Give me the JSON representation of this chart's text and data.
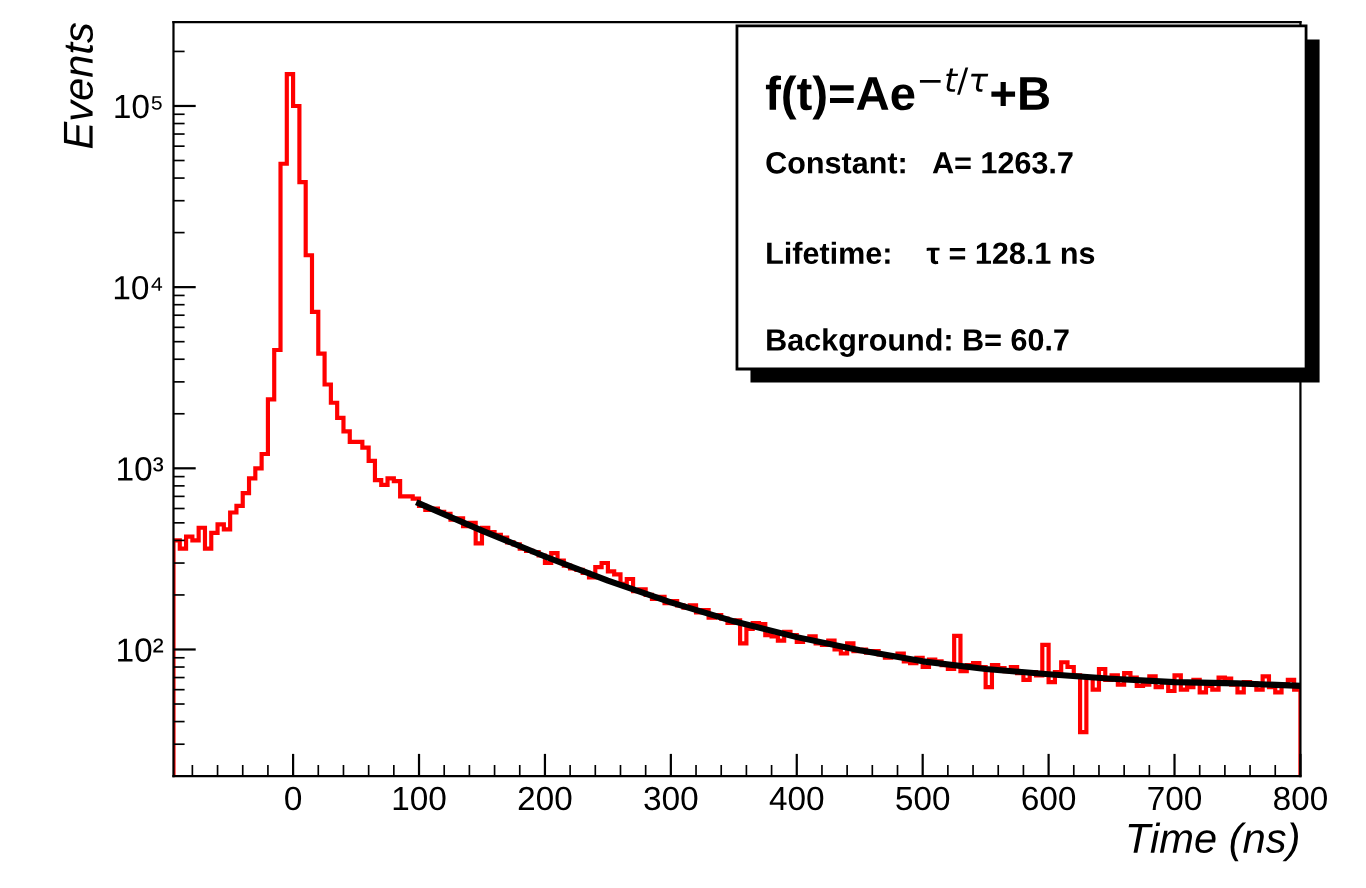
{
  "chart_data": {
    "type": "histogram",
    "xlabel": "Time (ns)",
    "ylabel": "Events",
    "bins": [
      -95,
      -90,
      -85,
      -80,
      -75,
      -70,
      -65,
      -60,
      -55,
      -50,
      -45,
      -40,
      -35,
      -30,
      -25,
      -20,
      -15,
      -10,
      -5,
      0,
      5,
      10,
      15,
      20,
      25,
      30,
      35,
      40,
      45,
      50,
      55,
      60,
      65,
      70,
      75,
      80,
      85,
      90,
      95,
      100,
      105,
      110,
      115,
      120,
      125,
      130,
      135,
      140,
      145,
      150,
      155,
      160,
      165,
      170,
      175,
      180,
      185,
      190,
      195,
      200,
      205,
      210,
      215,
      220,
      225,
      230,
      235,
      240,
      245,
      250,
      255,
      260,
      265,
      270,
      275,
      280,
      285,
      290,
      295,
      300,
      305,
      310,
      315,
      320,
      325,
      330,
      335,
      340,
      345,
      350,
      355,
      360,
      365,
      370,
      375,
      380,
      385,
      390,
      395,
      400,
      405,
      410,
      415,
      420,
      425,
      430,
      435,
      440,
      445,
      450,
      455,
      460,
      465,
      470,
      475,
      480,
      485,
      490,
      495,
      500,
      505,
      510,
      515,
      520,
      525,
      530,
      535,
      540,
      545,
      550,
      555,
      560,
      565,
      570,
      575,
      580,
      585,
      590,
      595,
      600,
      605,
      610,
      615,
      620,
      625,
      630,
      635,
      640,
      645,
      650,
      655,
      660,
      665,
      670,
      675,
      680,
      685,
      690,
      695,
      700,
      705,
      710,
      715,
      720,
      725,
      730,
      735,
      740,
      745,
      750,
      755,
      760,
      765,
      770,
      775,
      780,
      785,
      790,
      795,
      800
    ],
    "values": [
      400,
      360,
      420,
      400,
      470,
      360,
      440,
      490,
      460,
      570,
      620,
      730,
      880,
      1000,
      1200,
      2400,
      4500,
      48000,
      150000,
      100000,
      38000,
      15000,
      7300,
      4300,
      2900,
      2300,
      1900,
      1600,
      1400,
      1400,
      1300,
      1100,
      860,
      810,
      880,
      850,
      700,
      700,
      680,
      620,
      590,
      600,
      575,
      560,
      520,
      530,
      480,
      500,
      385,
      470,
      445,
      430,
      415,
      390,
      380,
      360,
      350,
      345,
      330,
      300,
      340,
      310,
      290,
      280,
      275,
      265,
      250,
      285,
      300,
      270,
      260,
      230,
      245,
      210,
      215,
      200,
      190,
      195,
      180,
      185,
      175,
      170,
      175,
      160,
      165,
      150,
      155,
      148,
      140,
      145,
      108,
      130,
      140,
      138,
      120,
      118,
      112,
      125,
      120,
      110,
      115,
      118,
      108,
      106,
      112,
      100,
      95,
      108,
      98,
      100,
      96,
      98,
      94,
      90,
      92,
      95,
      86,
      84,
      90,
      80,
      88,
      86,
      82,
      78,
      119,
      76,
      82,
      84,
      80,
      62,
      82,
      79,
      76,
      80,
      74,
      68,
      75,
      72,
      106,
      66,
      75,
      85,
      80,
      72,
      35,
      70,
      60,
      78,
      68,
      72,
      64,
      74,
      70,
      63,
      64,
      71,
      62,
      66,
      59,
      72,
      60,
      62,
      68,
      58,
      63,
      60,
      70,
      69,
      64,
      58,
      66,
      65,
      60,
      71,
      62,
      58,
      64,
      68,
      60
    ],
    "color": "#ff0000",
    "series": [
      {
        "type": "line",
        "color": "#000000",
        "x": [
          100,
          150,
          200,
          250,
          300,
          350,
          400,
          450,
          500,
          550,
          600,
          650,
          700,
          750,
          800
        ],
        "values": [
          640,
          453,
          326,
          240,
          182,
          143,
          117,
          99,
          86,
          78,
          73,
          69,
          66,
          65,
          63
        ]
      }
    ],
    "log": "y",
    "xlim": [
      -95,
      800
    ],
    "xticks": [
      0,
      100,
      200,
      300,
      400,
      500,
      600,
      700,
      800
    ],
    "ylim": [
      20,
      290000
    ],
    "yticks": [
      {
        "value": 100,
        "label": "10²"
      },
      {
        "value": 1000,
        "label": "10³"
      },
      {
        "value": 10000,
        "label": "10⁴"
      },
      {
        "value": 100000,
        "label": "10⁵"
      }
    ],
    "annotations": [
      "f(t)=Ae$^{−t/τ}$+B",
      "Constant:   A= 1263.7",
      "Lifetime:    τ = 128.1 ns",
      "Background: B= 60.7"
    ]
  }
}
